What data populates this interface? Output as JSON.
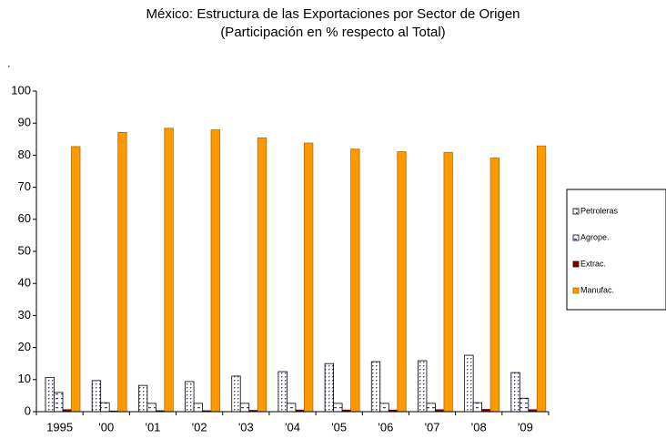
{
  "chart_data": {
    "type": "bar",
    "title": "México: Estructura de las Exportaciones por Sector de Origen",
    "subtitle": "(Participación en % respecto al Total)",
    "note": ".",
    "categories": [
      "1995",
      "'00",
      "'01",
      "'02",
      "'03",
      "'04",
      "'05",
      "'06",
      "'07",
      "'08",
      "'09"
    ],
    "series": [
      {
        "name": "Petroleras",
        "color": "#3333cc",
        "fill": "dots",
        "values": [
          10.7,
          9.7,
          8.2,
          9.4,
          11.1,
          12.5,
          15.0,
          15.6,
          15.9,
          17.6,
          12.2
        ]
      },
      {
        "name": "Agrope.",
        "color": "#3333cc",
        "fill": "dashes",
        "values": [
          6.0,
          2.8,
          2.6,
          2.6,
          2.6,
          2.6,
          2.6,
          2.6,
          2.6,
          2.8,
          4.2
        ]
      },
      {
        "name": "Extrac.",
        "color": "#800000",
        "fill": "solid",
        "values": [
          0.6,
          0.2,
          0.3,
          0.3,
          0.4,
          0.5,
          0.5,
          0.5,
          0.6,
          0.7,
          0.6
        ]
      },
      {
        "name": "Manufac.",
        "color": "#ff9900",
        "fill": "solid",
        "values": [
          82.7,
          87.1,
          88.4,
          87.9,
          85.4,
          83.8,
          81.9,
          81.1,
          80.9,
          79.1,
          82.9
        ]
      }
    ],
    "ylim": [
      0,
      100
    ],
    "yticks": [
      0,
      10,
      20,
      30,
      40,
      50,
      60,
      70,
      80,
      90,
      100
    ],
    "grid": false,
    "legend": "right"
  }
}
